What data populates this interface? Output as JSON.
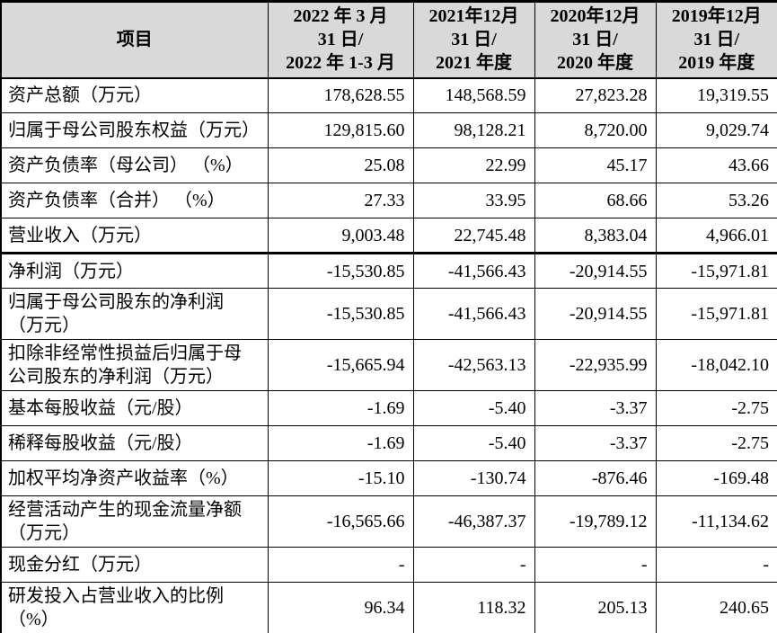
{
  "colors": {
    "header_bg": "#d9d9d9",
    "border": "#000000",
    "text": "#000000",
    "page_bg": "#ffffff"
  },
  "table": {
    "header": {
      "item_label": "项目",
      "columns": [
        "2022 年 3 月\n31 日/\n2022 年 1-3 月",
        "2021年12月\n31 日/\n2021 年度",
        "2020年12月\n31 日/\n2020 年度",
        "2019年12月\n31 日/\n2019 年度"
      ]
    },
    "rows": [
      {
        "label": "资产总额（万元）",
        "values": [
          "178,628.55",
          "148,568.59",
          "27,823.28",
          "19,319.55"
        ]
      },
      {
        "label": "归属于母公司股东权益（万元）",
        "values": [
          "129,815.60",
          "98,128.21",
          "8,720.00",
          "9,029.74"
        ]
      },
      {
        "label": "资产负债率（母公司） （%）",
        "values": [
          "25.08",
          "22.99",
          "45.17",
          "43.66"
        ]
      },
      {
        "label": "资产负债率（合并） （%）",
        "values": [
          "27.33",
          "33.95",
          "68.66",
          "53.26"
        ]
      },
      {
        "label": "营业收入（万元）",
        "values": [
          "9,003.48",
          "22,745.48",
          "8,383.04",
          "4,966.01"
        ]
      },
      {
        "label": "净利润（万元）",
        "values": [
          "-15,530.85",
          "-41,566.43",
          "-20,914.55",
          "-15,971.81"
        ],
        "section_break_above": true
      },
      {
        "label": "归属于母公司股东的净利润\n（万元）",
        "values": [
          "-15,530.85",
          "-41,566.43",
          "-20,914.55",
          "-15,971.81"
        ]
      },
      {
        "label": "扣除非经常性损益后归属于母\n公司股东的净利润（万元）",
        "values": [
          "-15,665.94",
          "-42,563.13",
          "-22,935.99",
          "-18,042.10"
        ]
      },
      {
        "label": "基本每股收益（元/股）",
        "values": [
          "-1.69",
          "-5.40",
          "-3.37",
          "-2.75"
        ]
      },
      {
        "label": "稀释每股收益（元/股）",
        "values": [
          "-1.69",
          "-5.40",
          "-3.37",
          "-2.75"
        ]
      },
      {
        "label": "加权平均净资产收益率（%）",
        "values": [
          "-15.10",
          "-130.74",
          "-876.46",
          "-169.48"
        ]
      },
      {
        "label": "经营活动产生的现金流量净额\n（万元）",
        "values": [
          "-16,565.66",
          "-46,387.37",
          "-19,789.12",
          "-11,134.62"
        ]
      },
      {
        "label": "现金分红（万元）",
        "values": [
          "-",
          "-",
          "-",
          "-"
        ]
      },
      {
        "label": "研发投入占营业收入的比例\n（%）",
        "values": [
          "96.34",
          "118.32",
          "205.13",
          "240.65"
        ]
      }
    ]
  }
}
